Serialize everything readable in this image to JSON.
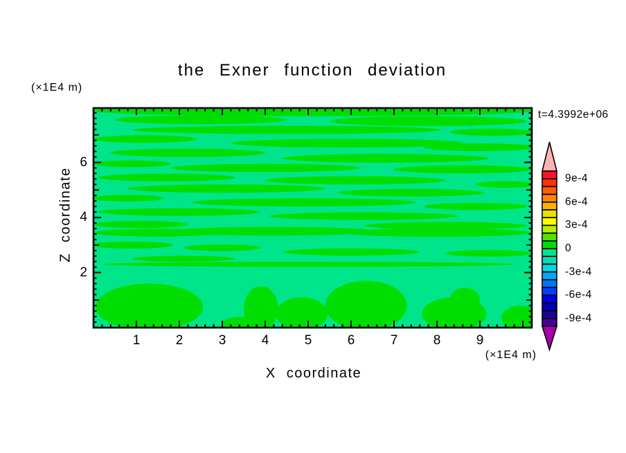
{
  "page": {
    "background": "#ffffff",
    "frame_color": "#000000"
  },
  "chart_data": {
    "type": "filled-contour",
    "title": "the Exner function deviation",
    "xlabel": "X coordinate",
    "ylabel": "Z coordinate",
    "x_unit_label": "(×1E4 m)",
    "y_unit_label": "(×1E4 m)",
    "time_annotation": "t=4.3992e+06",
    "xlim": [
      0,
      10.2
    ],
    "ylim": [
      0,
      7.97
    ],
    "x_major_ticks": [
      1,
      2,
      3,
      4,
      5,
      6,
      7,
      8,
      9
    ],
    "y_major_ticks": [
      2,
      4,
      6
    ],
    "minor_tick_step": 0.2,
    "grid": false,
    "legend_position": "none",
    "colorbar": {
      "position": "right",
      "tick_labels": [
        "9e-4",
        "6e-4",
        "3e-4",
        "0",
        "-3e-4",
        "-6e-4",
        "-9e-4"
      ],
      "segment_value_step": "1e-4",
      "segment_colors_top_to_bottom": [
        "#fa1428",
        "#ff3200",
        "#ff5f00",
        "#ff8700",
        "#ffaf00",
        "#e6e100",
        "#ffff00",
        "#b4f000",
        "#55e100",
        "#00dd00",
        "#00e58a",
        "#00ddb9",
        "#00d7e6",
        "#00aaf0",
        "#0073ff",
        "#0041ff",
        "#0000e1",
        "#0000af",
        "#1e0096",
        "#460096"
      ],
      "over_arrow_color": "#ffb4b4",
      "under_arrow_color": "#aa00aa"
    },
    "field": {
      "value_band_shown": [
        "-1e-4",
        "1e-4"
      ],
      "positive_band_color": "#00dd00",
      "negative_band_color": "#00e58a",
      "positive_regions_ellipses_xz": [
        [
          5.1,
          7.88,
          5.15,
          0.2
        ],
        [
          2.5,
          7.55,
          2.0,
          0.16
        ],
        [
          7.8,
          7.5,
          2.3,
          0.18
        ],
        [
          4.5,
          7.18,
          3.6,
          0.15
        ],
        [
          9.3,
          7.1,
          1.0,
          0.13
        ],
        [
          1.2,
          6.85,
          1.2,
          0.14
        ],
        [
          5.9,
          6.7,
          2.7,
          0.16
        ],
        [
          9.0,
          6.55,
          1.3,
          0.14
        ],
        [
          2.2,
          6.35,
          1.8,
          0.15
        ],
        [
          6.8,
          6.15,
          2.4,
          0.16
        ],
        [
          0.9,
          5.95,
          0.9,
          0.12
        ],
        [
          4.0,
          5.8,
          2.2,
          0.15
        ],
        [
          8.6,
          5.75,
          1.6,
          0.15
        ],
        [
          1.7,
          5.45,
          1.6,
          0.14
        ],
        [
          6.1,
          5.35,
          2.1,
          0.15
        ],
        [
          9.6,
          5.2,
          0.7,
          0.12
        ],
        [
          3.1,
          5.05,
          2.3,
          0.15
        ],
        [
          7.4,
          4.9,
          1.7,
          0.14
        ],
        [
          0.8,
          4.7,
          0.85,
          0.12
        ],
        [
          4.9,
          4.55,
          2.6,
          0.15
        ],
        [
          8.9,
          4.4,
          1.2,
          0.13
        ],
        [
          2.0,
          4.2,
          1.9,
          0.14
        ],
        [
          6.3,
          4.05,
          2.2,
          0.14
        ],
        [
          1.1,
          3.75,
          1.1,
          0.13
        ],
        [
          8.2,
          3.7,
          1.9,
          0.14
        ],
        [
          4.2,
          3.5,
          2.4,
          0.16
        ],
        [
          1.5,
          3.45,
          1.5,
          0.14
        ],
        [
          8.0,
          3.45,
          2.2,
          0.15
        ],
        [
          0.9,
          3.0,
          0.95,
          0.13
        ],
        [
          3.0,
          2.9,
          0.9,
          0.12
        ],
        [
          6.0,
          2.75,
          1.6,
          0.13
        ],
        [
          9.2,
          2.7,
          1.0,
          0.12
        ],
        [
          2.1,
          2.5,
          1.2,
          0.11
        ],
        [
          5.0,
          2.3,
          4.8,
          0.09
        ],
        [
          1.3,
          0.75,
          1.25,
          0.85
        ],
        [
          3.9,
          0.7,
          0.4,
          0.8
        ],
        [
          4.85,
          0.5,
          0.6,
          0.6
        ],
        [
          6.35,
          0.8,
          0.95,
          0.9
        ],
        [
          8.4,
          0.5,
          0.75,
          0.6
        ],
        [
          8.65,
          1.0,
          0.35,
          0.45
        ],
        [
          9.95,
          0.35,
          0.45,
          0.45
        ],
        [
          3.5,
          0.15,
          0.5,
          0.25
        ]
      ]
    }
  }
}
